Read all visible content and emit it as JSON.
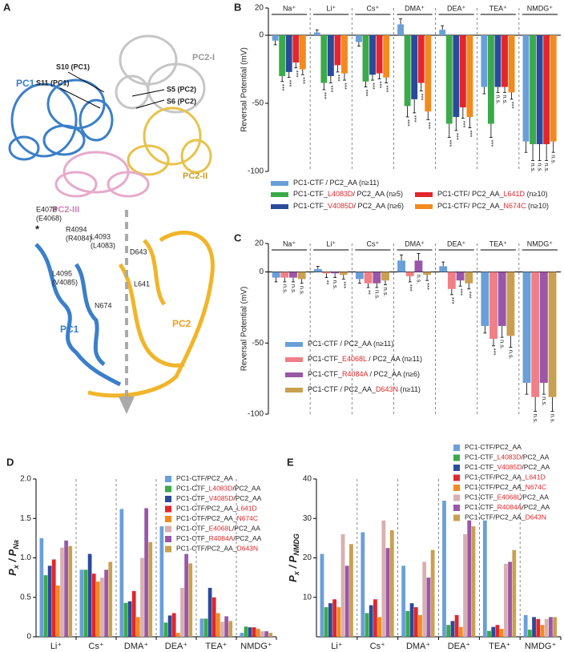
{
  "figure_a": {
    "panel": "A",
    "labels": [
      "PC1",
      "S10 (PC1)",
      "S11 (PC1)",
      "PC2-I",
      "S5 (PC2)",
      "S6 (PC2)",
      "PC2-II",
      "PC2-III"
    ],
    "detail_labels": [
      "E4078",
      "(E4068)",
      "*",
      "R4094",
      "(R4084)",
      "L4093",
      "(L4083)",
      "L4095",
      "(V4085)",
      "D643",
      "L641",
      "N674",
      "PC1",
      "PC2"
    ]
  },
  "chart_data": [
    {
      "type": "bar",
      "panel": "B",
      "category_position": "top",
      "ylabel": "Reversal Potential (mV)",
      "categories": [
        "Na⁺",
        "Li⁺",
        "Cs⁺",
        "DMA⁺",
        "DEA⁺",
        "TEA⁺",
        "NMDG⁺"
      ],
      "ylim": [
        -100,
        20
      ],
      "yticks": [
        20,
        0,
        -50,
        -100
      ],
      "series": [
        {
          "name": "PC1-CTF / PC2_AA (n≥11)",
          "color": "#6a9fd8",
          "values": [
            -4,
            2,
            -5,
            8,
            4,
            -38,
            -78
          ],
          "errors": [
            3,
            2,
            3,
            4,
            3,
            5,
            8
          ]
        },
        {
          "name": "PC1-CTF_L4083D/ PC2_AA (n≥5)",
          "color": "#3aaa4a",
          "values": [
            -30,
            -35,
            -34,
            -52,
            -65,
            -65,
            -80
          ],
          "errors": [
            4,
            5,
            4,
            8,
            10,
            10,
            12
          ],
          "significance": [
            "***",
            "***",
            "***",
            "***",
            "***",
            "***",
            "n.s."
          ]
        },
        {
          "name": "PC1-CTF_V4085D/ PC2_AA (n≥6)",
          "color": "#2a4a9c",
          "values": [
            -27,
            -30,
            -29,
            -47,
            -60,
            -38,
            -80
          ],
          "errors": [
            4,
            5,
            4,
            10,
            10,
            4,
            12
          ],
          "significance": [
            "***",
            "***",
            "***",
            "***",
            "***",
            "n.s.",
            "n.s."
          ]
        },
        {
          "name": "PC1-CTF/ PC2_AA_L641D (n≥10)",
          "color": "#e3262b",
          "values": [
            -20,
            -22,
            -28,
            -35,
            -53,
            -38,
            -80
          ],
          "errors": [
            4,
            5,
            4,
            6,
            8,
            4,
            12
          ],
          "significance": [
            "***",
            "***",
            "***",
            "***",
            "***",
            "n.s.",
            "n.s."
          ]
        },
        {
          "name": "PC1-CTF/ PC2_AA_N674C (n≥10)",
          "color": "#f28a1e",
          "values": [
            -25,
            -28,
            -31,
            -56,
            -60,
            -42,
            -78
          ],
          "errors": [
            4,
            5,
            4,
            6,
            8,
            5,
            8
          ],
          "significance": [
            "***",
            "***",
            "***",
            "***",
            "***",
            "***",
            "n.s."
          ]
        }
      ]
    },
    {
      "type": "bar",
      "panel": "C",
      "category_position": "top",
      "ylabel": "Reversal Potential (mV)",
      "categories": [
        "Na⁺",
        "Li⁺",
        "Cs⁺",
        "DMA⁺",
        "DEA⁺",
        "TEA⁺",
        "NMDG⁺"
      ],
      "ylim": [
        -100,
        20
      ],
      "yticks": [
        20,
        0,
        -50,
        -100
      ],
      "series": [
        {
          "name": "PC1-CTF / PC2_AA (n≥11)",
          "color": "#6a9fd8",
          "values": [
            -4,
            2,
            -5,
            8,
            4,
            -38,
            -78
          ],
          "errors": [
            3,
            2,
            3,
            4,
            3,
            5,
            8
          ]
        },
        {
          "name": "PC1-CTF_E4068L / PC2_AA (n≥11)",
          "color": "#f07f86",
          "values": [
            -4,
            -1,
            -8,
            -3,
            -12,
            -47,
            -88
          ],
          "errors": [
            3,
            3,
            3,
            4,
            4,
            5,
            10
          ],
          "significance": [
            "n.s.",
            "**",
            "**",
            "***",
            "***",
            "***",
            "n.s."
          ]
        },
        {
          "name": "PC1-CTF_R4084A / PC2_AA (n≥6)",
          "color": "#9a56a8",
          "values": [
            -4,
            -1,
            -8,
            8,
            -6,
            -38,
            -78
          ],
          "errors": [
            3,
            3,
            3,
            5,
            4,
            8,
            8
          ],
          "significance": [
            "n.s.",
            "n.s.",
            "n.s.",
            "n.s.",
            "***",
            "n.s.",
            "n.s."
          ]
        },
        {
          "name": "PC1-CTF / PC2_AA_D643N (n≥11)",
          "color": "#c9a052",
          "values": [
            -5,
            -2,
            -6,
            -2,
            -8,
            -45,
            -88
          ],
          "errors": [
            3,
            3,
            3,
            4,
            4,
            8,
            10
          ],
          "significance": [
            "n.s.",
            "***",
            "n.s.",
            "***",
            "***",
            "n.s.",
            "n.s."
          ]
        }
      ]
    },
    {
      "type": "bar",
      "panel": "D",
      "category_position": "bottom",
      "ylabel": [
        "P",
        "x",
        " / P",
        "Na"
      ],
      "categories": [
        "Li⁺",
        "Cs⁺",
        "DMA⁺",
        "DEA⁺",
        "TEA⁺",
        "NMDG⁺"
      ],
      "ylim": [
        0,
        2
      ],
      "yticks": [
        0,
        0.5,
        {
          "value": 1,
          "label": "1.0"
        },
        1.5,
        {
          "value": 2,
          "label": "2.0"
        }
      ],
      "series": [
        {
          "name": "PC1-CTF/PC2_AA",
          "color": "#6a9fd8",
          "values": [
            1.25,
            0.85,
            1.62,
            1.4,
            0.23,
            0.05
          ]
        },
        {
          "name": "PC1-CTF_L4083D/PC2_AA",
          "color": "#3aaa4a",
          "values": [
            0.78,
            0.85,
            0.43,
            0.18,
            0.23,
            0.13
          ]
        },
        {
          "name": "PC1-CTF_V4085D/PC2_AA",
          "color": "#2a4a9c",
          "values": [
            0.9,
            1.05,
            0.45,
            0.27,
            0.62,
            0.12
          ]
        },
        {
          "name": "PC1-CTF/PC2_AA_L641D",
          "color": "#e3262b",
          "values": [
            0.98,
            0.8,
            0.58,
            0.3,
            0.5,
            0.12
          ]
        },
        {
          "name": "PC1-CTF/PC2_AA_N674C",
          "color": "#f28a1e",
          "values": [
            0.65,
            0.7,
            0.25,
            0.05,
            0.3,
            0.1
          ]
        },
        {
          "name": "PC1-CTF_E4068L/PC2_AA",
          "color": "#d8b0b0",
          "values": [
            1.13,
            0.75,
            1,
            0.62,
            0.19,
            0.07
          ]
        },
        {
          "name": "PC1-CTF_R4084A/PC2_AA",
          "color": "#9a56a8",
          "values": [
            1.22,
            0.85,
            1.63,
            1.05,
            0.26,
            0.07
          ]
        },
        {
          "name": "PC1-CTF/PC2_AA_D643N",
          "color": "#c9a052",
          "values": [
            1.15,
            0.95,
            1.2,
            0.93,
            0.2,
            0.05
          ]
        }
      ]
    },
    {
      "type": "bar",
      "panel": "E",
      "category_position": "bottom",
      "ylabel": [
        "P",
        "x",
        " / P",
        "NMDG"
      ],
      "categories": [
        "Li⁺",
        "Cs⁺",
        "DMA⁺",
        "DEA⁺",
        "TEA⁺",
        "NMDG⁺"
      ],
      "ylim": [
        0,
        40
      ],
      "yticks": [
        10,
        20,
        30,
        40
      ],
      "series": [
        {
          "name": "PC1-CTF/PC2_AA",
          "color": "#6a9fd8",
          "values": [
            21,
            26.5,
            18,
            34.5,
            29.5,
            5.5
          ]
        },
        {
          "name": "PC1-CTF_L4083D/PC2_AA",
          "color": "#3aaa4a",
          "values": [
            7.5,
            6,
            6.5,
            3,
            1.5,
            1.8
          ]
        },
        {
          "name": "PC1-CTF_V4085D/PC2_AA",
          "color": "#2a4a9c",
          "values": [
            8.5,
            8,
            8.5,
            4,
            2.5,
            5
          ]
        },
        {
          "name": "PC1-CTF/PC2_AA_L641D",
          "color": "#e3262b",
          "values": [
            9.5,
            9.5,
            7.5,
            5.5,
            3,
            4.5
          ]
        },
        {
          "name": "PC1-CTF/PC2_AA_N674C",
          "color": "#f28a1e",
          "values": [
            7.5,
            5,
            5.5,
            2.5,
            2,
            3
          ]
        },
        {
          "name": "PC1-CTF_E4068L/PC2_AA",
          "color": "#d8b0b0",
          "values": [
            26,
            29.5,
            19,
            26,
            18.5,
            4.5
          ]
        },
        {
          "name": "PC1-CTF_R4084A/PC2_AA",
          "color": "#9a56a8",
          "values": [
            18,
            22.5,
            15,
            29.5,
            19,
            5
          ]
        },
        {
          "name": "PC1-CTF/PC2_AA_D643N",
          "color": "#c9a052",
          "values": [
            23.5,
            27,
            22,
            28,
            22,
            5
          ]
        }
      ]
    }
  ]
}
